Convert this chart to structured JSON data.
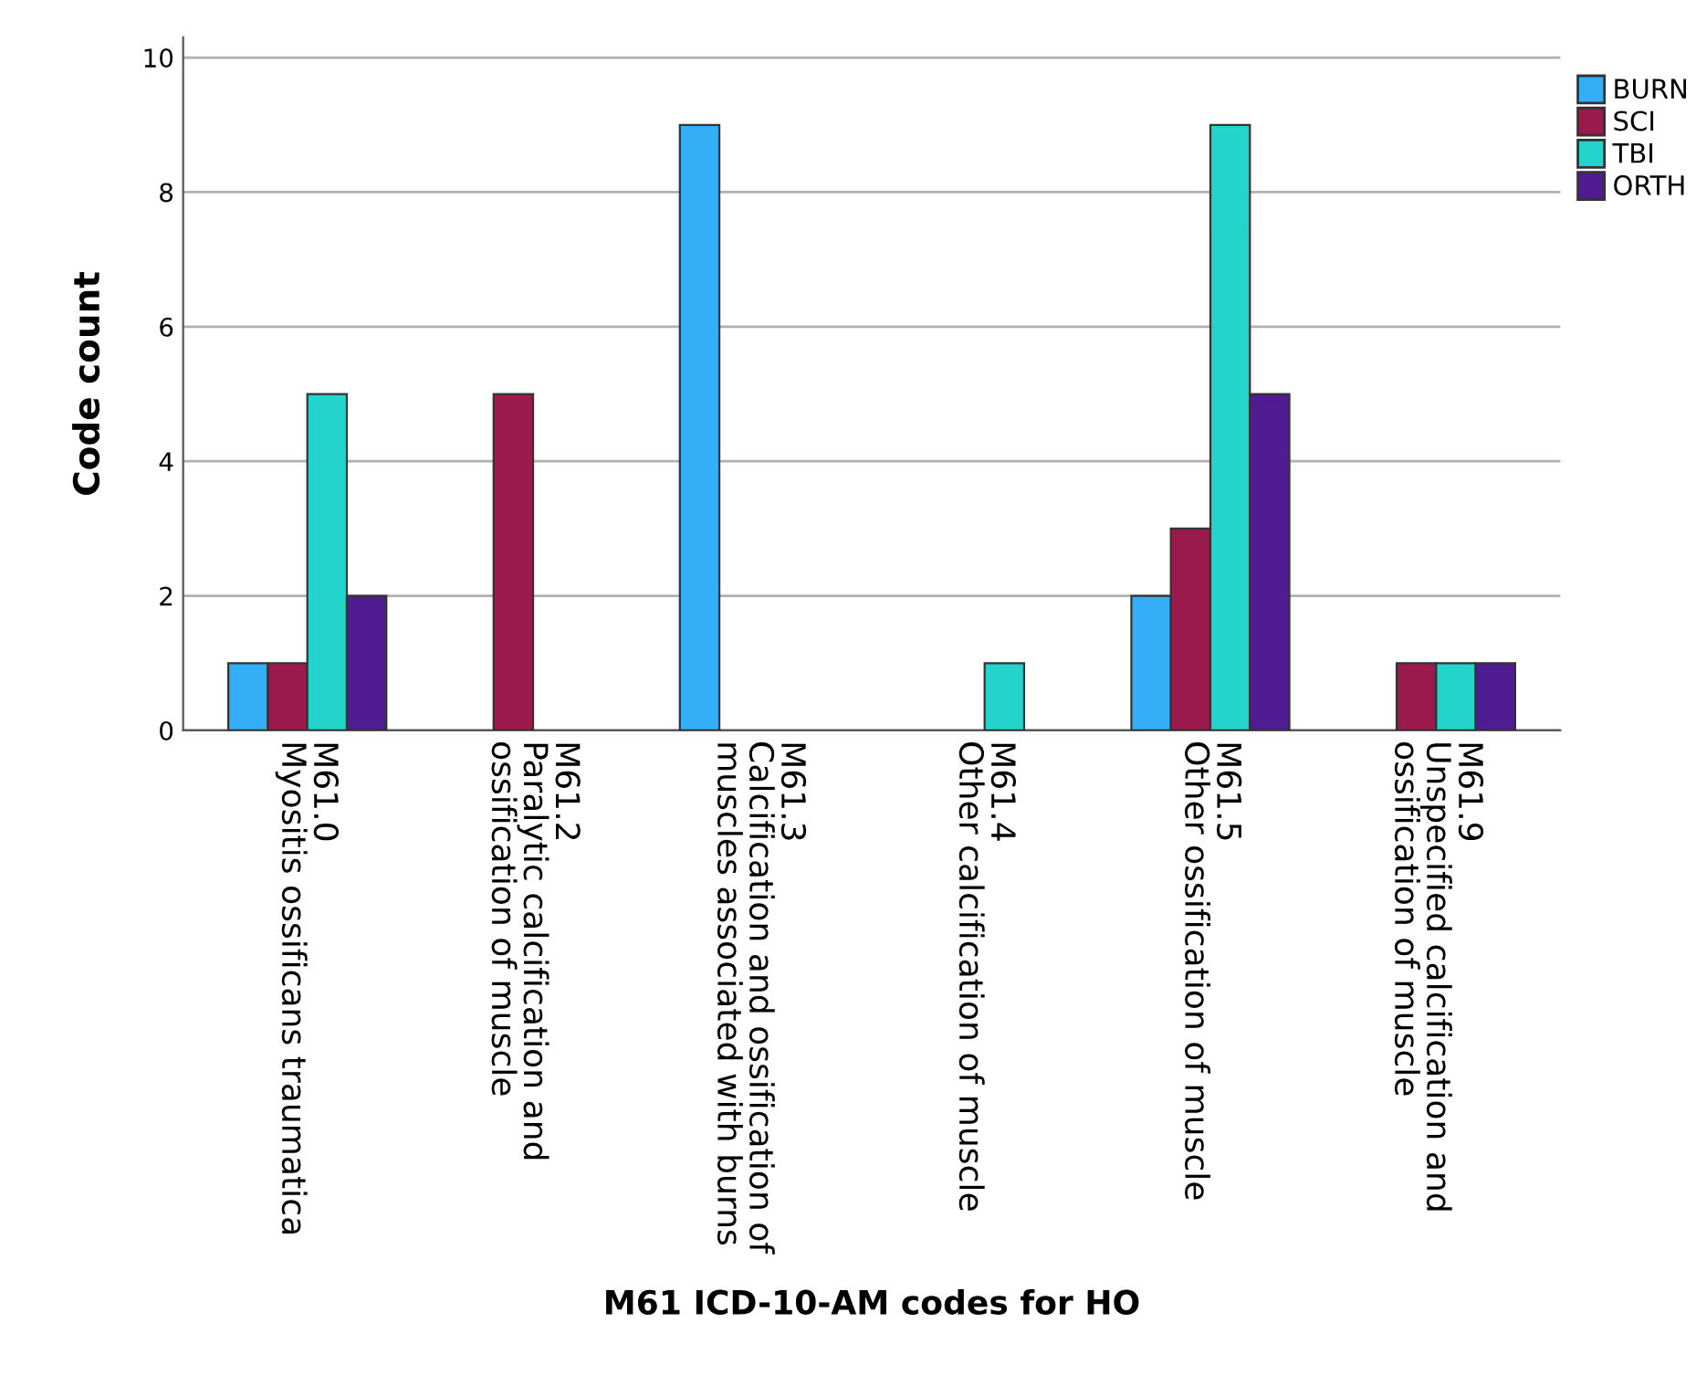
{
  "chart_data": {
    "type": "bar",
    "xlabel": "M61 ICD-10-AM codes for HO",
    "ylabel": "Code count",
    "categories": [
      "M61.0\nMyositis ossificans traumatica",
      "M61.2\nParalytic calcification and\nossification of muscle",
      "M61.3\nCalcification and ossification of\nmuscles associated with burns",
      "M61.4\nOther calcification of muscle",
      "M61.5\nOther ossification of muscle",
      "M61.9\nUnspecified calcification and\nossification of muscle"
    ],
    "series": [
      {
        "name": "BURN",
        "color": "#33aef7",
        "values": [
          1,
          null,
          9,
          null,
          2,
          null
        ]
      },
      {
        "name": "SCI",
        "color": "#9b1a4e",
        "values": [
          1,
          5,
          null,
          null,
          3,
          1
        ]
      },
      {
        "name": "TBI",
        "color": "#22d4cc",
        "values": [
          5,
          null,
          null,
          1,
          9,
          1
        ]
      },
      {
        "name": "ORTH",
        "color": "#4f1d91",
        "values": [
          2,
          null,
          null,
          null,
          5,
          1
        ]
      }
    ],
    "ylim": [
      0,
      10.3
    ],
    "yticks": [
      0,
      2,
      4,
      6,
      8,
      10
    ],
    "grid": "y",
    "legend": "top right"
  }
}
